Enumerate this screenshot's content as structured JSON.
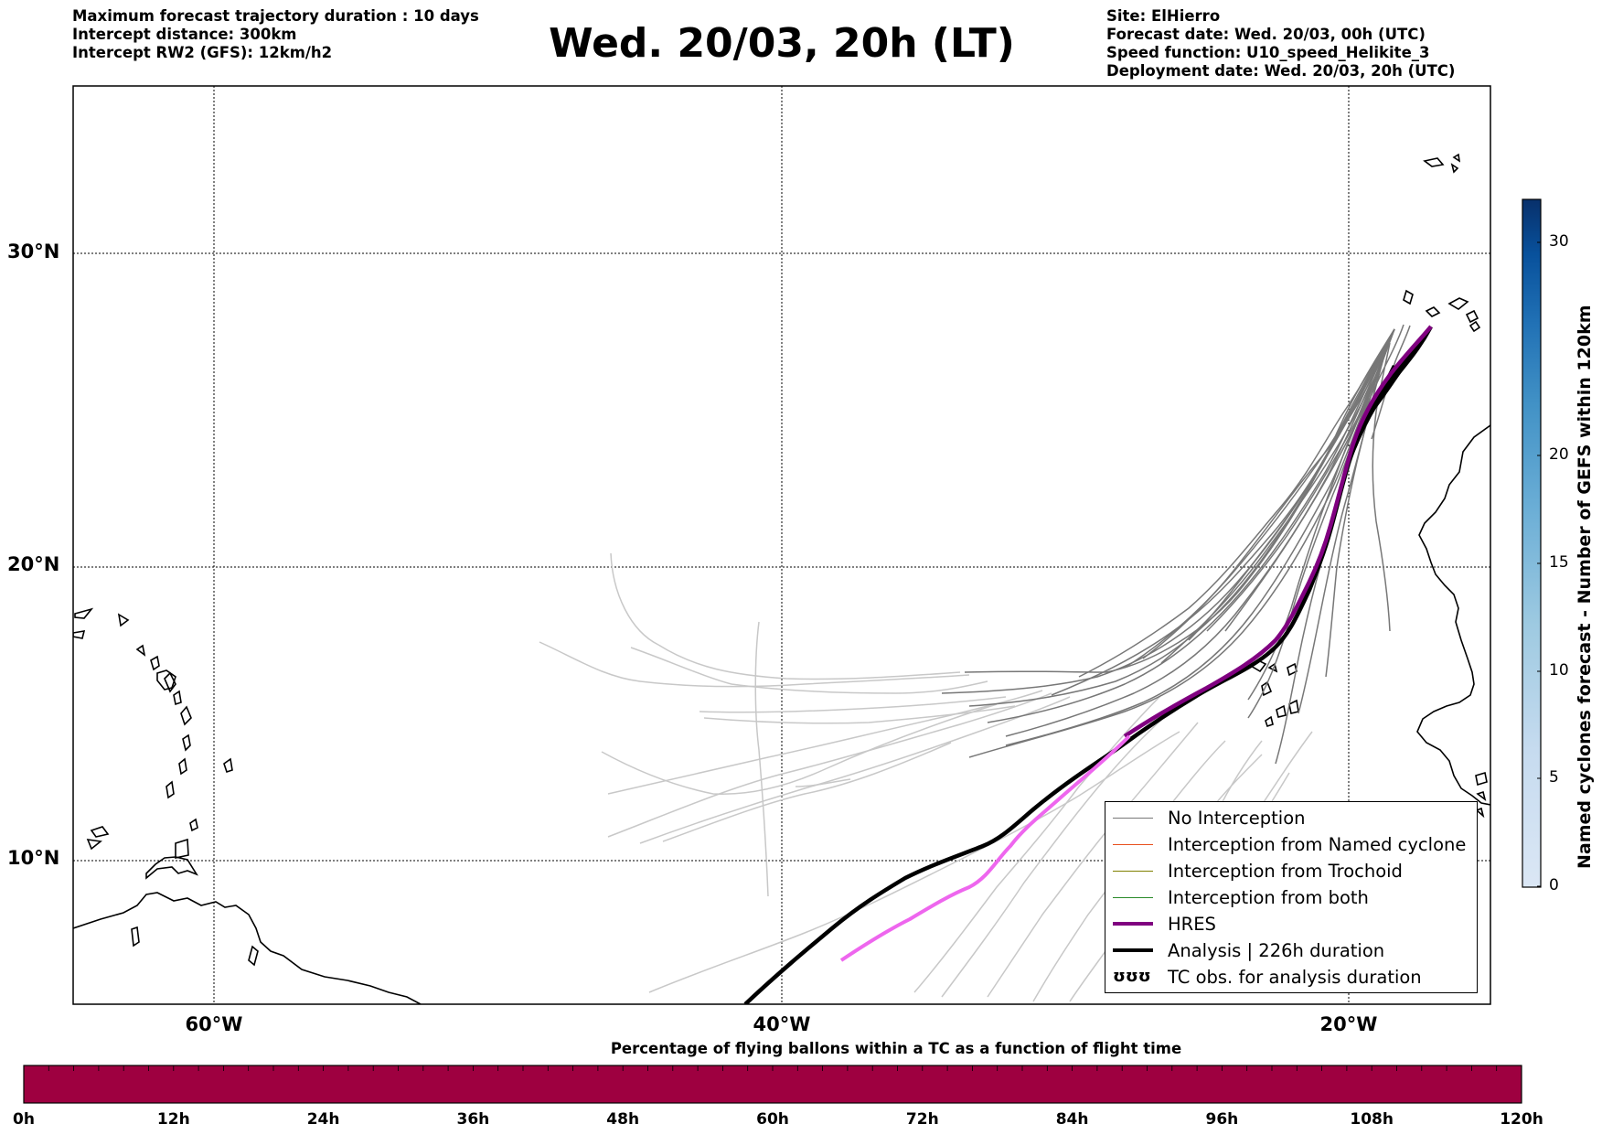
{
  "header": {
    "left_lines": [
      "Maximum forecast trajectory duration : 10 days",
      "Intercept distance: 300km",
      "Intercept RW2 (GFS):  12km/h2"
    ],
    "title": "Wed. 20/03, 20h (LT)",
    "right_lines": [
      "Site: ElHierro",
      "Forecast date: Wed. 20/03, 00h (UTC)",
      "Speed function: U10_speed_Helikite_3",
      "Deployment date: Wed. 20/03, 20h (UTC)"
    ]
  },
  "map": {
    "lat_ticks": [
      "30°N",
      "20°N",
      "10°N"
    ],
    "lon_ticks": [
      "60°W",
      "40°W",
      "20°W"
    ],
    "colors": {
      "no_interception": "#777777",
      "faded_trajectory": "#c8c8c8",
      "hres": "#800080",
      "hres_forecast_part": "#ee66ee",
      "analysis": "#000000",
      "coastline": "#000000"
    }
  },
  "legend": {
    "items": [
      {
        "label": "No Interception",
        "color": "#777777",
        "kind": "thin"
      },
      {
        "label": "Interception from Named cyclone",
        "color": "#e8501e",
        "kind": "thin"
      },
      {
        "label": "Interception from Trochoid",
        "color": "#808000",
        "kind": "thin"
      },
      {
        "label": "Interception from both",
        "color": "#2a8a2a",
        "kind": "thin"
      },
      {
        "label": "HRES",
        "color": "#800080",
        "kind": "thick"
      },
      {
        "label": "Analysis | 226h duration",
        "color": "#000000",
        "kind": "thick"
      },
      {
        "label": "TC obs. for analysis duration",
        "color": "#000000",
        "kind": "symbol",
        "symbol": "ʊʊʊ"
      }
    ]
  },
  "colorbar": {
    "label": "Named cyclones forecast - Number of GEFS within 120km",
    "ticks": [
      "0",
      "5",
      "10",
      "15",
      "20",
      "30"
    ],
    "colors": [
      "#dbe7f5",
      "#c6dbef",
      "#9ecae1",
      "#6baed6",
      "#4292c6",
      "#2171b5",
      "#08519c",
      "#08306b"
    ]
  },
  "time_bar": {
    "title": "Percentage of flying ballons within a TC as a function of flight time",
    "ticks": [
      "0h",
      "12h",
      "24h",
      "36h",
      "48h",
      "60h",
      "72h",
      "84h",
      "96h",
      "108h",
      "120h"
    ],
    "fill_color": "#9e0040"
  }
}
